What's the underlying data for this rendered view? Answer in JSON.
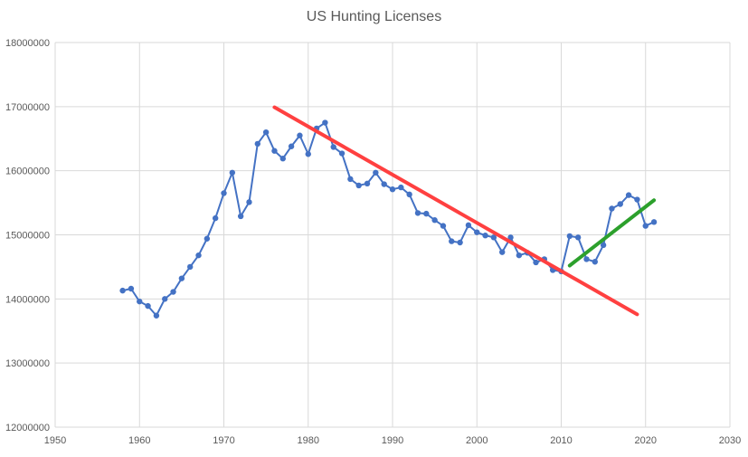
{
  "chart_data": {
    "type": "line",
    "title": "US Hunting Licenses",
    "xlabel": "",
    "ylabel": "",
    "xlim": [
      1950,
      2030
    ],
    "ylim": [
      12000000,
      18000000
    ],
    "x_ticks": [
      1950,
      1960,
      1970,
      1980,
      1990,
      2000,
      2010,
      2020,
      2030
    ],
    "y_ticks": [
      12000000,
      13000000,
      14000000,
      15000000,
      16000000,
      17000000,
      18000000
    ],
    "grid": true,
    "legend": "none",
    "series": [
      {
        "color": "#4472c4",
        "points": [
          [
            1958,
            14130000
          ],
          [
            1959,
            14160000
          ],
          [
            1960,
            13960000
          ],
          [
            1961,
            13890000
          ],
          [
            1962,
            13740000
          ],
          [
            1963,
            14000000
          ],
          [
            1964,
            14110000
          ],
          [
            1965,
            14320000
          ],
          [
            1966,
            14500000
          ],
          [
            1967,
            14680000
          ],
          [
            1968,
            14940000
          ],
          [
            1969,
            15260000
          ],
          [
            1970,
            15650000
          ],
          [
            1971,
            15970000
          ],
          [
            1972,
            15290000
          ],
          [
            1973,
            15510000
          ],
          [
            1974,
            16420000
          ],
          [
            1975,
            16600000
          ],
          [
            1976,
            16310000
          ],
          [
            1977,
            16190000
          ],
          [
            1978,
            16380000
          ],
          [
            1979,
            16550000
          ],
          [
            1980,
            16260000
          ],
          [
            1981,
            16660000
          ],
          [
            1982,
            16750000
          ],
          [
            1983,
            16370000
          ],
          [
            1984,
            16270000
          ],
          [
            1985,
            15870000
          ],
          [
            1986,
            15770000
          ],
          [
            1987,
            15800000
          ],
          [
            1988,
            15970000
          ],
          [
            1989,
            15790000
          ],
          [
            1990,
            15710000
          ],
          [
            1991,
            15740000
          ],
          [
            1992,
            15630000
          ],
          [
            1993,
            15340000
          ],
          [
            1994,
            15330000
          ],
          [
            1995,
            15230000
          ],
          [
            1996,
            15140000
          ],
          [
            1997,
            14900000
          ],
          [
            1998,
            14880000
          ],
          [
            1999,
            15150000
          ],
          [
            2000,
            15040000
          ],
          [
            2001,
            14990000
          ],
          [
            2002,
            14960000
          ],
          [
            2003,
            14730000
          ],
          [
            2004,
            14960000
          ],
          [
            2005,
            14680000
          ],
          [
            2006,
            14720000
          ],
          [
            2007,
            14570000
          ],
          [
            2008,
            14620000
          ],
          [
            2009,
            14450000
          ],
          [
            2010,
            14430000
          ],
          [
            2011,
            14980000
          ],
          [
            2012,
            14960000
          ],
          [
            2013,
            14620000
          ],
          [
            2014,
            14580000
          ],
          [
            2015,
            14840000
          ],
          [
            2016,
            15410000
          ],
          [
            2017,
            15480000
          ],
          [
            2018,
            15620000
          ],
          [
            2019,
            15550000
          ],
          [
            2020,
            15140000
          ],
          [
            2021,
            15200000
          ]
        ]
      }
    ],
    "trendlines": [
      {
        "color": "#ff4040",
        "points": [
          [
            1976,
            16990000
          ],
          [
            2019,
            13760000
          ]
        ]
      },
      {
        "color": "#2ca02c",
        "points": [
          [
            2011,
            14520000
          ],
          [
            2021,
            15540000
          ]
        ]
      }
    ]
  }
}
